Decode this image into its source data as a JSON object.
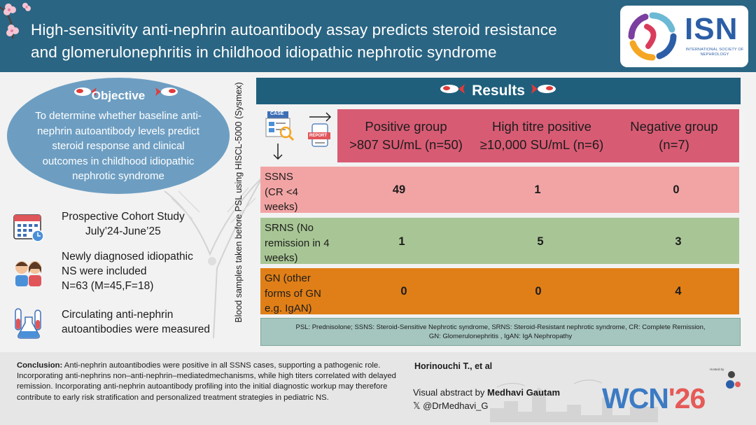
{
  "header": {
    "title_line1": "High-sensitivity anti-nephrin autoantibody assay predicts steroid resistance",
    "title_line2": "and glomerulonephritis in childhood idiopathic nephrotic syndrome",
    "logo_text": "ISN",
    "logo_subtext": "INTERNATIONAL SOCIETY OF NEPHROLOGY"
  },
  "objective": {
    "title": "Objective",
    "text": "To determine whether baseline anti-nephrin autoantibody levels predict steroid response and clinical outcomes in childhood idiopathic nephrotic syndrome"
  },
  "study": {
    "design_line1": "Prospective Cohort Study",
    "design_line2": "July’24-June’25",
    "population_line1": "Newly diagnosed idiopathic",
    "population_line2": "NS were included",
    "population_line3": "N=63 (M=45,F=18)",
    "measure_line1": "Circulating anti-nephrin",
    "measure_line2": "autoantibodies were measured"
  },
  "vertical_label": "Blood samples taken before PSL using HISCL-5000 (Sysmex)",
  "results": {
    "title": "Results",
    "case_label": "CASE",
    "report_label": "REPORT",
    "columns": [
      {
        "line1": "Positive group",
        "line2": ">807 SU/mL (n=50)"
      },
      {
        "line1": "High titre positive",
        "line2": "≥10,000 SU/mL (n=6)"
      },
      {
        "line1": "Negative group",
        "line2": "(n=7)"
      }
    ],
    "rows": [
      {
        "label": "SSNS (CR <4 weeks)",
        "values": [
          "49",
          "1",
          "0"
        ]
      },
      {
        "label": "SRNS (No remission in 4 weeks)",
        "values": [
          "1",
          "5",
          "3"
        ]
      },
      {
        "label": "GN (other forms of GN e.g. IgAN)",
        "values": [
          "0",
          "0",
          "4"
        ]
      }
    ],
    "abbrev_line1": "PSL: Prednisolone; SSNS:  Steroid-Sensitive Nephrotic syndrome, SRNS: Steroid-Resistant nephrotic syndrome, CR: Complete Remission,",
    "abbrev_line2": "GN: Glomerulonephritis , IgAN: IgA Nephropathy"
  },
  "footer": {
    "conclusion_label": "Conclusion:",
    "conclusion_text": " Anti-nephrin autoantibodies were positive in all SSNS cases, supporting a pathogenic role. Incorporating anti-nephrins non–anti-nephrin–mediatedmechanisms, while high titers correlated with delayed remission. Incorporating anti-nephrin autoantibody profiling into the initial diagnostic workup may therefore contribute to early risk stratification and personalized treatment strategies in pediatric NS.",
    "authors": "Horinouchi T., et al",
    "va_prefix": "Visual abstract by ",
    "va_name": "Medhavi Gautam",
    "handle": "𝕏 @DrMedhavi_G",
    "hosted_by": "Hosted by",
    "wcn_part1": "WCN",
    "wcn_part2": "'26"
  },
  "colors": {
    "header_bg": "#2a6583",
    "results_bar": "#1f5f7c",
    "objective_bg": "#6d9ec2",
    "column_head": "#d85b74",
    "ssns_row": "#f2a4a4",
    "srns_row": "#a8c695",
    "gn_row": "#e07f17",
    "abbrev_bg": "#a5c6bf"
  }
}
